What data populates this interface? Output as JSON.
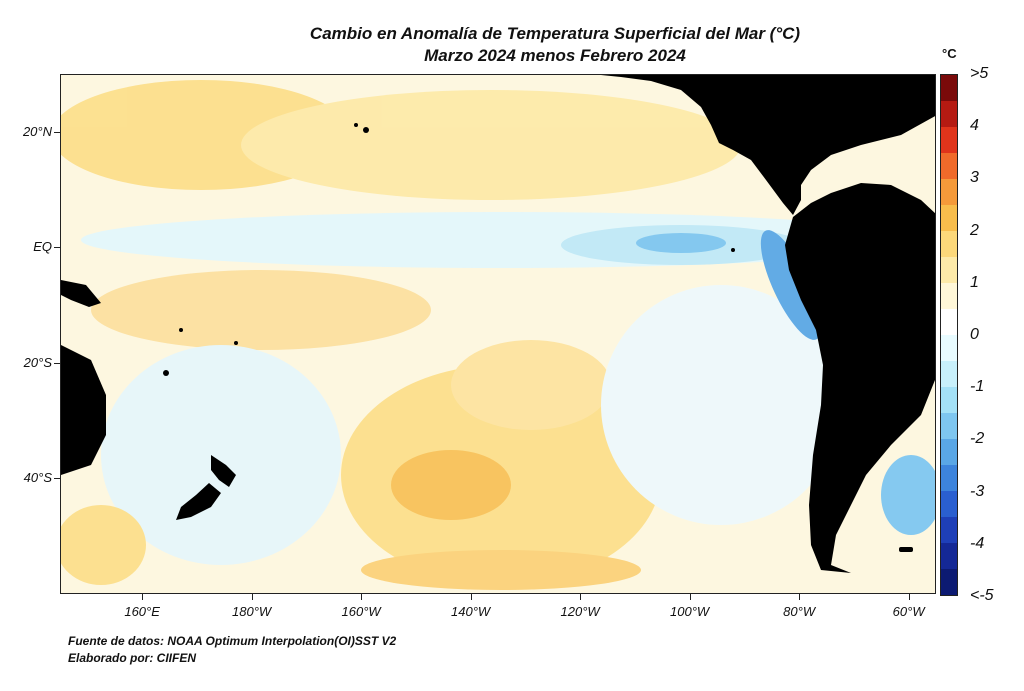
{
  "title_line1": "Cambio en Anomalía de Temperatura Superficial del Mar (°C)",
  "title_line2": "Marzo 2024 menos Febrero 2024",
  "colorbar": {
    "unit": "°C",
    "labels": [
      ">5",
      "4",
      "3",
      "2",
      "1",
      "0",
      "-1",
      "-2",
      "-3",
      "-4",
      "<-5"
    ],
    "colors": [
      "#7a0a0a",
      "#b51a12",
      "#e0341b",
      "#f06a2a",
      "#f59a3a",
      "#f8bd4c",
      "#fcd87a",
      "#fdeaa9",
      "#fff7d8",
      "#ffffff",
      "#e8fbff",
      "#c8f0fb",
      "#a4e1f7",
      "#7ec6f0",
      "#5aa7e6",
      "#3d84dc",
      "#2a5fd0",
      "#1e3fb8",
      "#142896",
      "#0c1a72"
    ]
  },
  "yticks": [
    {
      "label": "20°N",
      "lat": 20
    },
    {
      "label": "EQ",
      "lat": 0
    },
    {
      "label": "20°S",
      "lat": -20
    },
    {
      "label": "40°S",
      "lat": -40
    }
  ],
  "xticks": [
    {
      "label": "160°E",
      "lon": 160
    },
    {
      "label": "180°W",
      "lon": 180
    },
    {
      "label": "160°W",
      "lon": 200
    },
    {
      "label": "140°W",
      "lon": 220
    },
    {
      "label": "120°W",
      "lon": 240
    },
    {
      "label": "100°W",
      "lon": 260
    },
    {
      "label": "80°W",
      "lon": 280
    },
    {
      "label": "60°W",
      "lon": 300
    }
  ],
  "extent": {
    "lon_min": 145,
    "lon_max": 305,
    "lat_min": -60,
    "lat_max": 30
  },
  "footer": {
    "source": "Fuente de datos: NOAA Optimum Interpolation(OI)SST V2",
    "author": "Elaborado por: CIIFEN"
  },
  "land_color": "#000000",
  "ocean_base_color": "#fdf7e0"
}
